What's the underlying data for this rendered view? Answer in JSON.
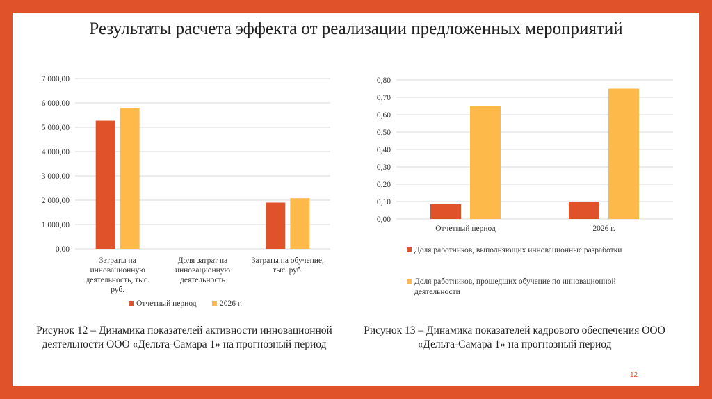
{
  "title": "Результаты расчета эффекта от реализации предложенных мероприятий",
  "page_number": "12",
  "colors": {
    "frame": "#e0522a",
    "series1": "#e0522a",
    "series2": "#fdb94a",
    "grid": "#d9d9d9"
  },
  "captions": {
    "fig12": "Рисунок 12 – Динамика показателей активности инновационной деятельности ООО «Дельта-Самара 1» на прогнозный период",
    "fig13": "Рисунок 13 – Динамика показателей кадрового обеспечения ООО «Дельта-Самара 1» на прогнозный период"
  },
  "chart_data": [
    {
      "type": "bar",
      "categories": [
        [
          "Затраты на",
          "инновационную",
          "деятельность, тыс.",
          "руб."
        ],
        [
          "Доля затрат на",
          "инновационную",
          "деятельность"
        ],
        [
          "Затраты на обучение,",
          "тыс. руб."
        ]
      ],
      "yticks": [
        "0,00",
        "1 000,00",
        "2 000,00",
        "3 000,00",
        "4 000,00",
        "5 000,00",
        "6 000,00",
        "7 000,00"
      ],
      "ylim": [
        0,
        7000
      ],
      "grid": true,
      "legend": "bottom",
      "series": [
        {
          "name": "Отчетный период",
          "values": [
            5270,
            0,
            1900
          ]
        },
        {
          "name": "2026 г.",
          "values": [
            5800,
            0,
            2080
          ]
        }
      ]
    },
    {
      "type": "bar",
      "categories": [
        [
          "Отчетный период"
        ],
        [
          "2026 г."
        ]
      ],
      "yticks": [
        "0,00",
        "0,10",
        "0,20",
        "0,30",
        "0,40",
        "0,50",
        "0,60",
        "0,70",
        "0,80"
      ],
      "ylim": [
        0,
        0.8
      ],
      "grid": true,
      "legend": "bottom",
      "series": [
        {
          "name": "Доля работников, выполняющих инновационные разработки",
          "values": [
            0.085,
            0.1
          ]
        },
        {
          "name": "Доля работников, прошедших обучение по инновационной деятельности",
          "values": [
            0.65,
            0.75
          ]
        }
      ]
    }
  ]
}
